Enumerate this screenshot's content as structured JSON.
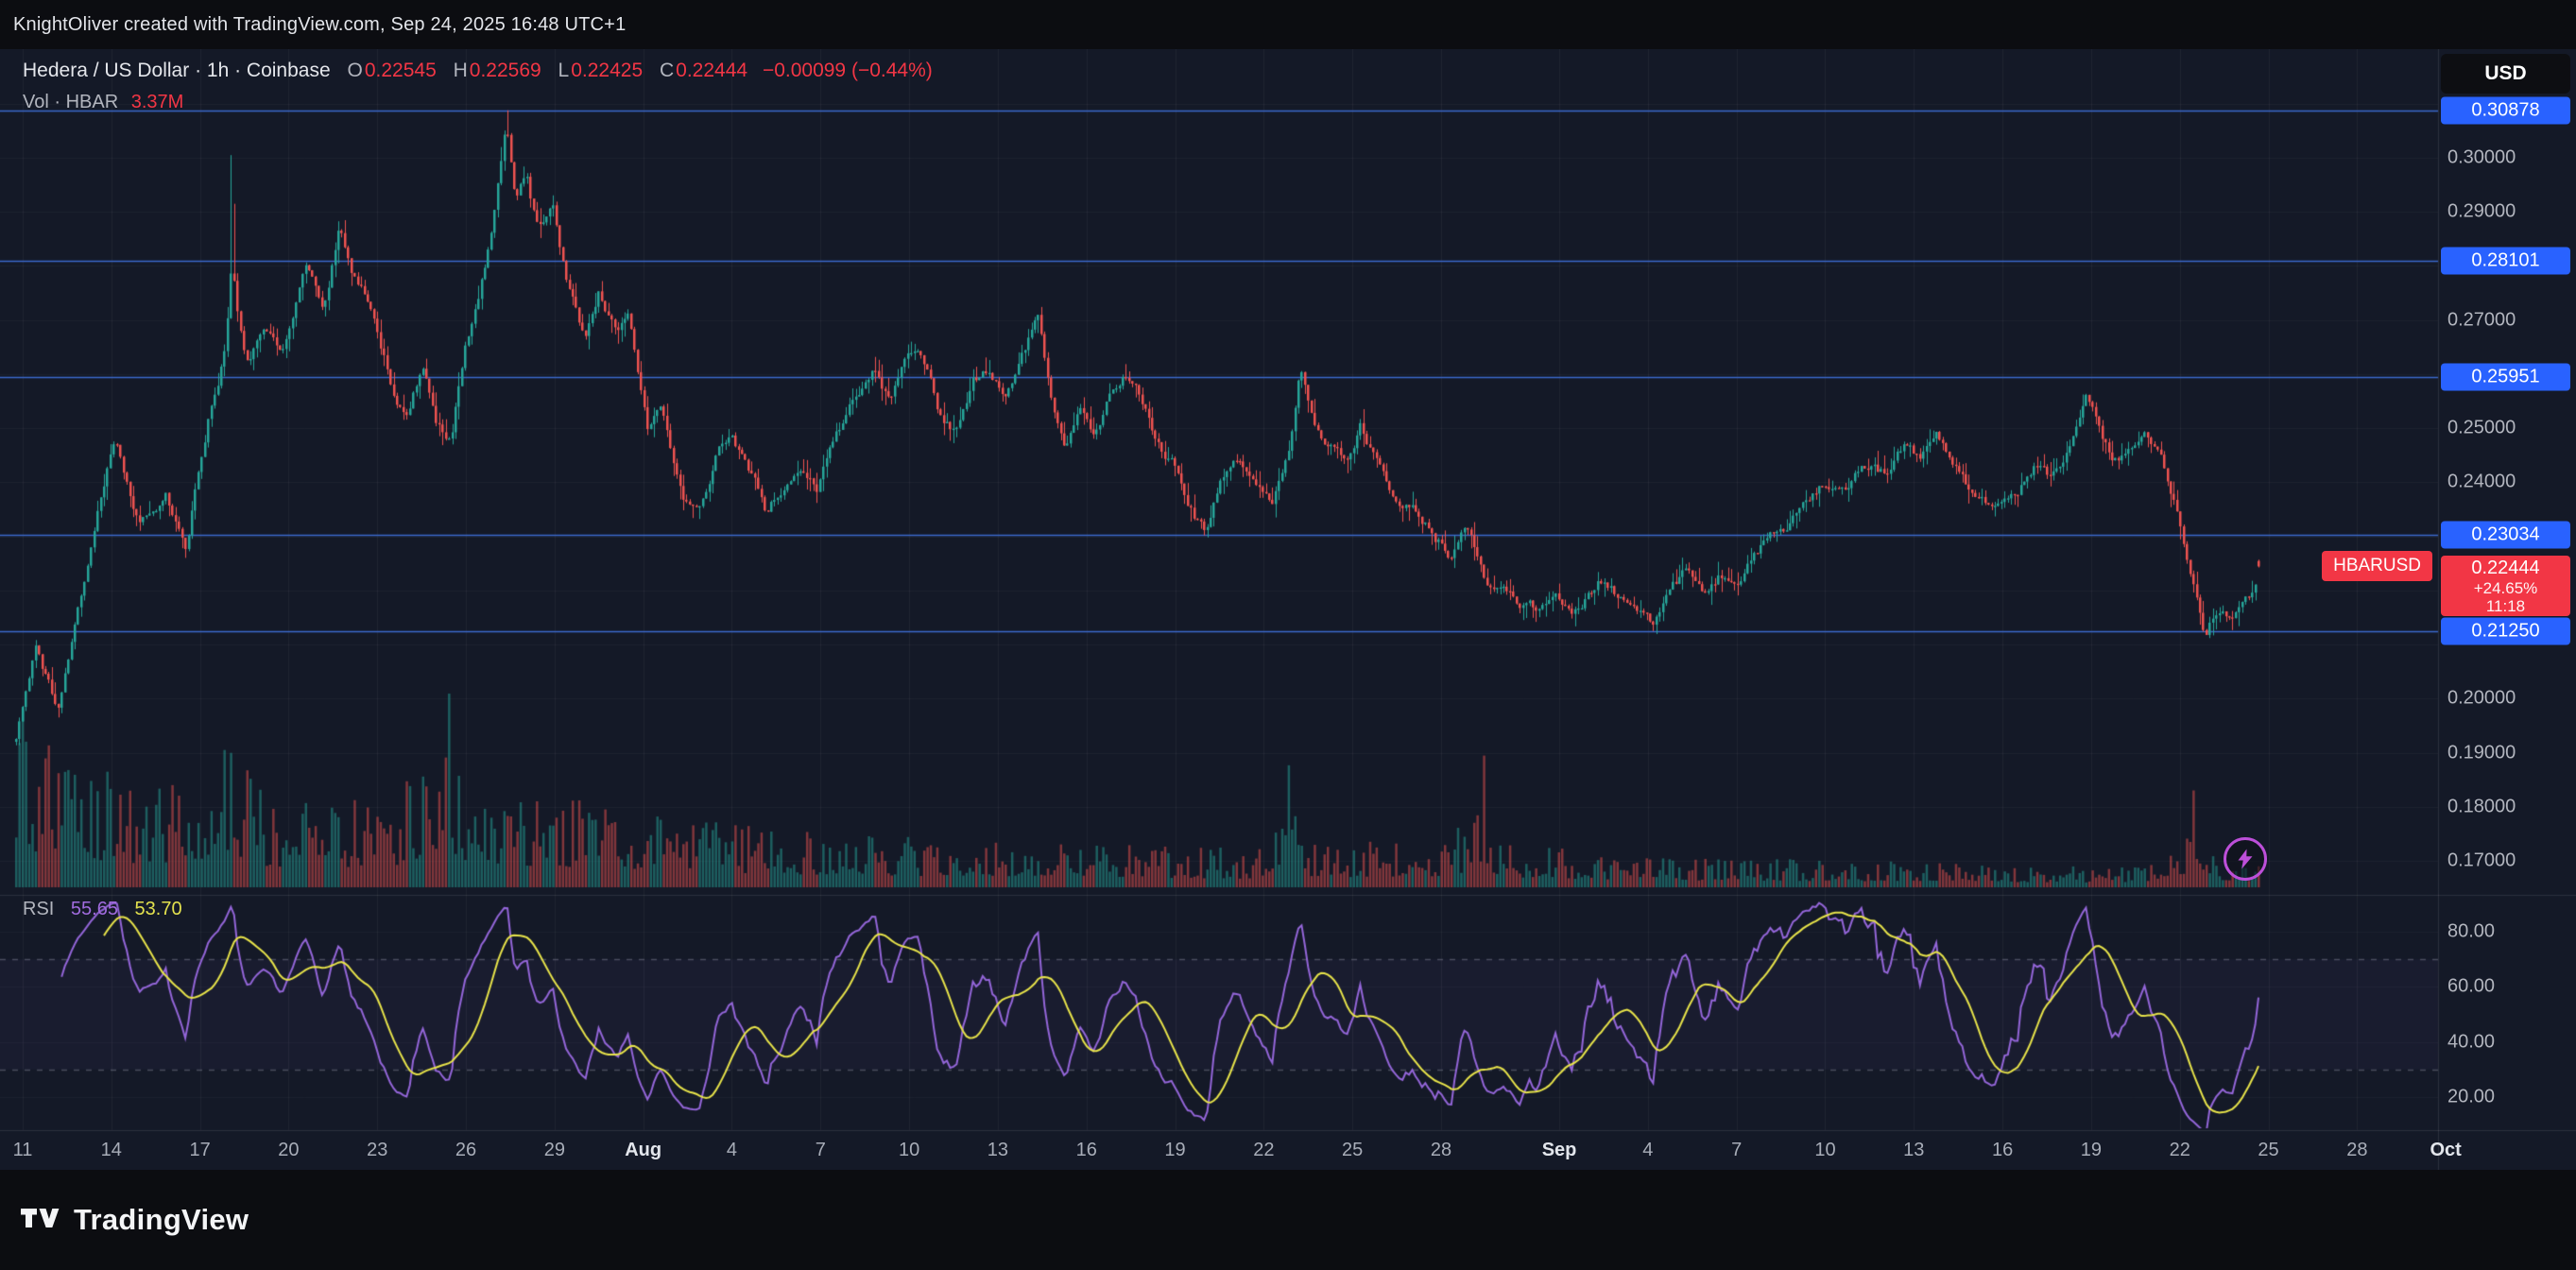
{
  "attribution": {
    "text": "KnightOliver created with TradingView.com, Sep 24, 2025 16:48 UTC+1"
  },
  "header": {
    "title_line": "Hedera / US Dollar · 1h · Coinbase",
    "ohlc": {
      "o_label": "O",
      "o": "0.22545",
      "h_label": "H",
      "h": "0.22569",
      "l_label": "L",
      "l": "0.22425",
      "c_label": "C",
      "c": "0.22444",
      "change": "−0.00099 (−0.44%)"
    },
    "volume": {
      "label": "Vol · HBAR",
      "value": "3.37M"
    }
  },
  "rsi_pane": {
    "label": "RSI",
    "value_main": "55.65",
    "value_signal": "53.70",
    "ticks": [
      {
        "label": "80.00",
        "value": 80
      },
      {
        "label": "60.00",
        "value": 60
      },
      {
        "label": "40.00",
        "value": 40
      },
      {
        "label": "20.00",
        "value": 20
      }
    ],
    "bands": [
      70,
      30
    ]
  },
  "price_axis": {
    "currency_button": "USD",
    "plain_ticks": [
      {
        "label": "0.30000",
        "value": 0.3
      },
      {
        "label": "0.29000",
        "value": 0.29
      },
      {
        "label": "0.27000",
        "value": 0.27
      },
      {
        "label": "0.25000",
        "value": 0.25
      },
      {
        "label": "0.24000",
        "value": 0.24
      },
      {
        "label": "0.20000",
        "value": 0.2
      },
      {
        "label": "0.19000",
        "value": 0.19
      },
      {
        "label": "0.18000",
        "value": 0.18
      },
      {
        "label": "0.17000",
        "value": 0.17
      }
    ],
    "level_badges": [
      {
        "label": "0.30878",
        "value": 0.30878
      },
      {
        "label": "0.28101",
        "value": 0.28101
      },
      {
        "label": "0.25951",
        "value": 0.25951
      },
      {
        "label": "0.23034",
        "value": 0.23034
      },
      {
        "label": "0.21250",
        "value": 0.2125
      }
    ],
    "last_price_badge": {
      "symbol_tag": "HBARUSD",
      "price": "0.22444",
      "change_pct": "+24.65%",
      "countdown": "11:18",
      "value": 0.22444
    }
  },
  "time_axis": {
    "labels": [
      {
        "label": "11",
        "day": 0
      },
      {
        "label": "14",
        "day": 3
      },
      {
        "label": "17",
        "day": 6
      },
      {
        "label": "20",
        "day": 9
      },
      {
        "label": "23",
        "day": 12
      },
      {
        "label": "26",
        "day": 15
      },
      {
        "label": "29",
        "day": 18
      },
      {
        "label": "Aug",
        "day": 21,
        "month": true
      },
      {
        "label": "4",
        "day": 24
      },
      {
        "label": "7",
        "day": 27
      },
      {
        "label": "10",
        "day": 30
      },
      {
        "label": "13",
        "day": 33
      },
      {
        "label": "16",
        "day": 36
      },
      {
        "label": "19",
        "day": 39
      },
      {
        "label": "22",
        "day": 42
      },
      {
        "label": "25",
        "day": 45
      },
      {
        "label": "28",
        "day": 48
      },
      {
        "label": "Sep",
        "day": 52,
        "month": true
      },
      {
        "label": "4",
        "day": 55
      },
      {
        "label": "7",
        "day": 58
      },
      {
        "label": "10",
        "day": 61
      },
      {
        "label": "13",
        "day": 64
      },
      {
        "label": "16",
        "day": 67
      },
      {
        "label": "19",
        "day": 70
      },
      {
        "label": "22",
        "day": 73
      },
      {
        "label": "25",
        "day": 76
      },
      {
        "label": "28",
        "day": 79
      },
      {
        "label": "Oct",
        "day": 82,
        "month": true
      }
    ]
  },
  "footer": {
    "brand": "TradingView"
  },
  "colors": {
    "up": "#26a69a",
    "down": "#ef5350",
    "vol_up": "rgba(38,166,154,0.5)",
    "vol_down": "rgba(239,83,80,0.5)",
    "level_line": "#3e6fd6",
    "badge_blue": "#2962ff",
    "badge_red": "#f23645",
    "rsi": "#9466d9",
    "rsi_ma": "#e8e44a",
    "axis_text": "#b2b5be"
  },
  "chart_data": {
    "type": "candlestick",
    "symbol": "HBARUSD",
    "title": "Hedera / US Dollar",
    "interval": "1h",
    "exchange": "Coinbase",
    "visible_range": "Jul 11 2025 – Sep 24 2025 16:00",
    "price_scale": {
      "min": 0.166,
      "max": 0.3125
    },
    "levels": [
      0.30878,
      0.28101,
      0.25951,
      0.23034,
      0.2125
    ],
    "last": {
      "open": 0.22545,
      "high": 0.22569,
      "low": 0.22425,
      "close": 0.22444,
      "change": -0.00099,
      "change_pct": -0.44
    },
    "rsi_last": {
      "rsi": 55.65,
      "signal": 53.7
    },
    "candle_count": 690,
    "seed": 1348,
    "wick_anchors": [
      [
        0.0963,
        0.3005
      ],
      [
        0.2185,
        0.30878
      ]
    ],
    "low_anchors": [
      [
        0.7304,
        0.2125
      ],
      [
        0.9763,
        0.2128
      ]
    ],
    "volume_spikes": [
      [
        0.003,
        0.92
      ],
      [
        0.193,
        1.0
      ],
      [
        0.568,
        0.63
      ],
      [
        0.654,
        0.68
      ],
      [
        0.9715,
        0.5
      ]
    ],
    "price_path": [
      [
        0,
        0.192
      ],
      [
        0.009,
        0.213
      ],
      [
        0.0185,
        0.2
      ],
      [
        0.033,
        0.225
      ],
      [
        0.044,
        0.247
      ],
      [
        0.0556,
        0.232
      ],
      [
        0.0667,
        0.238
      ],
      [
        0.0756,
        0.228
      ],
      [
        0.0852,
        0.252
      ],
      [
        0.0933,
        0.266
      ],
      [
        0.0963,
        0.281
      ],
      [
        0.0993,
        0.27
      ],
      [
        0.1037,
        0.262
      ],
      [
        0.111,
        0.27
      ],
      [
        0.1185,
        0.267
      ],
      [
        0.1296,
        0.281
      ],
      [
        0.137,
        0.272
      ],
      [
        0.1444,
        0.289
      ],
      [
        0.1496,
        0.278
      ],
      [
        0.157,
        0.272
      ],
      [
        0.1667,
        0.258
      ],
      [
        0.174,
        0.251
      ],
      [
        0.1815,
        0.262
      ],
      [
        0.1874,
        0.249
      ],
      [
        0.194,
        0.247
      ],
      [
        0.2,
        0.265
      ],
      [
        0.2059,
        0.272
      ],
      [
        0.2126,
        0.287
      ],
      [
        0.2185,
        0.3045
      ],
      [
        0.223,
        0.291
      ],
      [
        0.2274,
        0.2975
      ],
      [
        0.2326,
        0.2865
      ],
      [
        0.2393,
        0.2915
      ],
      [
        0.2459,
        0.2755
      ],
      [
        0.2533,
        0.2645
      ],
      [
        0.26,
        0.2745
      ],
      [
        0.2674,
        0.268
      ],
      [
        0.2733,
        0.2715
      ],
      [
        0.2815,
        0.2515
      ],
      [
        0.2881,
        0.2565
      ],
      [
        0.297,
        0.2395
      ],
      [
        0.3044,
        0.2345
      ],
      [
        0.3119,
        0.244
      ],
      [
        0.3185,
        0.2495
      ],
      [
        0.3267,
        0.2425
      ],
      [
        0.3348,
        0.2345
      ],
      [
        0.3422,
        0.241
      ],
      [
        0.3496,
        0.247
      ],
      [
        0.357,
        0.2425
      ],
      [
        0.3659,
        0.2515
      ],
      [
        0.3748,
        0.2585
      ],
      [
        0.3822,
        0.262
      ],
      [
        0.3896,
        0.2545
      ],
      [
        0.397,
        0.2635
      ],
      [
        0.4044,
        0.2615
      ],
      [
        0.4119,
        0.2515
      ],
      [
        0.4193,
        0.249
      ],
      [
        0.4267,
        0.2575
      ],
      [
        0.4341,
        0.2605
      ],
      [
        0.4415,
        0.2545
      ],
      [
        0.4489,
        0.2625
      ],
      [
        0.4556,
        0.2695
      ],
      [
        0.4607,
        0.258
      ],
      [
        0.4674,
        0.2465
      ],
      [
        0.4741,
        0.2525
      ],
      [
        0.4807,
        0.247
      ],
      [
        0.4881,
        0.2555
      ],
      [
        0.4948,
        0.2595
      ],
      [
        0.5015,
        0.2545
      ],
      [
        0.5081,
        0.2475
      ],
      [
        0.5156,
        0.2435
      ],
      [
        0.523,
        0.2375
      ],
      [
        0.5304,
        0.2315
      ],
      [
        0.5378,
        0.2425
      ],
      [
        0.5452,
        0.2455
      ],
      [
        0.5526,
        0.2425
      ],
      [
        0.56,
        0.2375
      ],
      [
        0.5674,
        0.2445
      ],
      [
        0.5726,
        0.2605
      ],
      [
        0.5785,
        0.2515
      ],
      [
        0.5859,
        0.2475
      ],
      [
        0.5933,
        0.2445
      ],
      [
        0.5993,
        0.2515
      ],
      [
        0.6067,
        0.2455
      ],
      [
        0.6156,
        0.2375
      ],
      [
        0.6244,
        0.2345
      ],
      [
        0.6319,
        0.2305
      ],
      [
        0.6393,
        0.2275
      ],
      [
        0.6467,
        0.2315
      ],
      [
        0.6563,
        0.2215
      ],
      [
        0.6637,
        0.2185
      ],
      [
        0.6711,
        0.216
      ],
      [
        0.6785,
        0.214
      ],
      [
        0.6859,
        0.219
      ],
      [
        0.6933,
        0.2145
      ],
      [
        0.7007,
        0.218
      ],
      [
        0.7081,
        0.2215
      ],
      [
        0.7156,
        0.2185
      ],
      [
        0.723,
        0.2145
      ],
      [
        0.7304,
        0.2128
      ],
      [
        0.7378,
        0.218
      ],
      [
        0.7452,
        0.2215
      ],
      [
        0.7526,
        0.2195
      ],
      [
        0.76,
        0.2235
      ],
      [
        0.7674,
        0.221
      ],
      [
        0.7748,
        0.2255
      ],
      [
        0.7822,
        0.2295
      ],
      [
        0.7896,
        0.2275
      ],
      [
        0.797,
        0.2325
      ],
      [
        0.8044,
        0.2375
      ],
      [
        0.8119,
        0.2355
      ],
      [
        0.8193,
        0.2395
      ],
      [
        0.8267,
        0.2425
      ],
      [
        0.8341,
        0.2405
      ],
      [
        0.8415,
        0.2445
      ],
      [
        0.8489,
        0.2425
      ],
      [
        0.8563,
        0.2485
      ],
      [
        0.8637,
        0.2455
      ],
      [
        0.8711,
        0.2405
      ],
      [
        0.8785,
        0.2365
      ],
      [
        0.8859,
        0.2345
      ],
      [
        0.8933,
        0.2385
      ],
      [
        0.9007,
        0.2425
      ],
      [
        0.9081,
        0.2405
      ],
      [
        0.9156,
        0.2455
      ],
      [
        0.923,
        0.2525
      ],
      [
        0.9281,
        0.2485
      ],
      [
        0.934,
        0.2425
      ],
      [
        0.9415,
        0.2455
      ],
      [
        0.9489,
        0.2485
      ],
      [
        0.9563,
        0.2425
      ],
      [
        0.9637,
        0.2355
      ],
      [
        0.9711,
        0.2215
      ],
      [
        0.9763,
        0.2135
      ],
      [
        0.9822,
        0.219
      ],
      [
        0.9881,
        0.217
      ],
      [
        0.994,
        0.2215
      ],
      [
        1,
        0.2244
      ]
    ],
    "volume_envelope": [
      [
        0,
        0.95
      ],
      [
        0.02,
        0.7
      ],
      [
        0.05,
        0.55
      ],
      [
        0.08,
        0.6
      ],
      [
        0.096,
        0.75
      ],
      [
        0.11,
        0.5
      ],
      [
        0.14,
        0.45
      ],
      [
        0.165,
        0.5
      ],
      [
        0.188,
        0.62
      ],
      [
        0.193,
        1.0
      ],
      [
        0.198,
        0.6
      ],
      [
        0.215,
        0.55
      ],
      [
        0.23,
        0.5
      ],
      [
        0.26,
        0.45
      ],
      [
        0.285,
        0.4
      ],
      [
        0.31,
        0.34
      ],
      [
        0.35,
        0.3
      ],
      [
        0.39,
        0.27
      ],
      [
        0.43,
        0.25
      ],
      [
        0.47,
        0.27
      ],
      [
        0.51,
        0.22
      ],
      [
        0.55,
        0.2
      ],
      [
        0.568,
        0.42
      ],
      [
        0.578,
        0.24
      ],
      [
        0.61,
        0.24
      ],
      [
        0.64,
        0.26
      ],
      [
        0.654,
        0.5
      ],
      [
        0.662,
        0.24
      ],
      [
        0.69,
        0.2
      ],
      [
        0.72,
        0.18
      ],
      [
        0.75,
        0.16
      ],
      [
        0.78,
        0.15
      ],
      [
        0.81,
        0.14
      ],
      [
        0.84,
        0.15
      ],
      [
        0.87,
        0.13
      ],
      [
        0.9,
        0.12
      ],
      [
        0.93,
        0.11
      ],
      [
        0.955,
        0.12
      ],
      [
        0.971,
        0.35
      ],
      [
        0.978,
        0.2
      ],
      [
        0.985,
        0.15
      ],
      [
        1,
        0.13
      ]
    ]
  }
}
